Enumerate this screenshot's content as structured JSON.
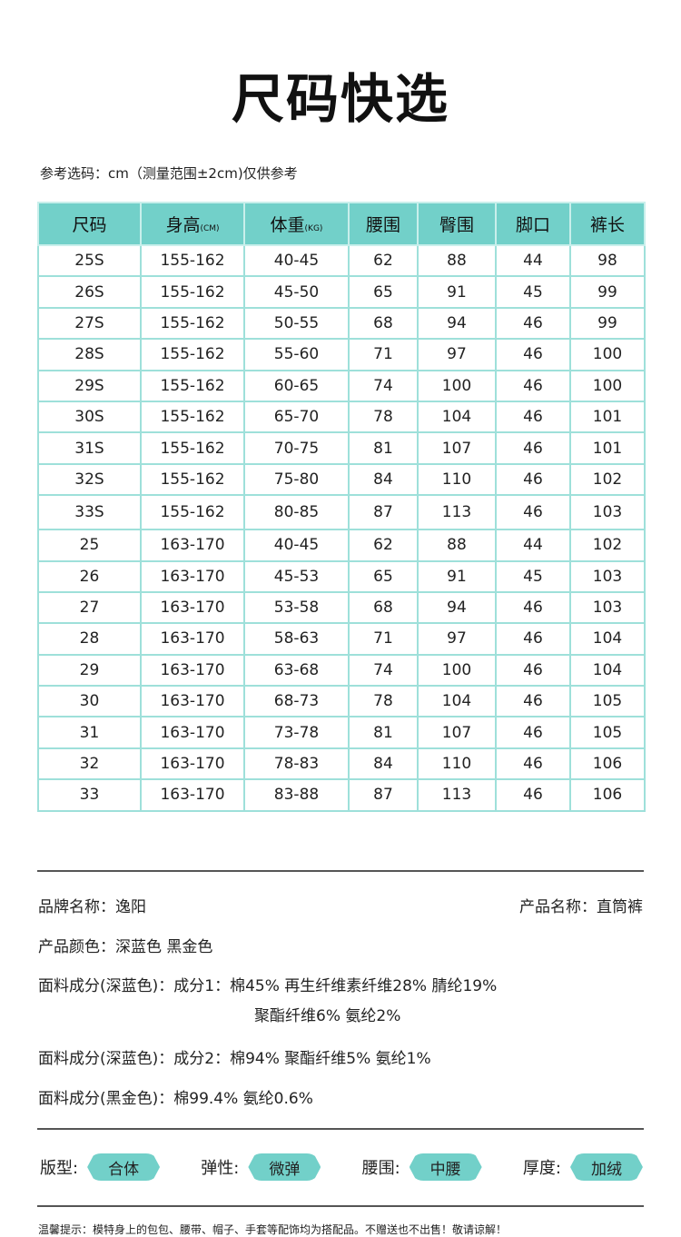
{
  "title": "尺码快选",
  "note": "参考选码：cm（测量范围±2cm)仅供参考",
  "table": {
    "headers": [
      {
        "main": "尺码",
        "unit": ""
      },
      {
        "main": "身高",
        "unit": "(CM)"
      },
      {
        "main": "体重",
        "unit": "(KG)"
      },
      {
        "main": "腰围",
        "unit": ""
      },
      {
        "main": "臀围",
        "unit": ""
      },
      {
        "main": "脚口",
        "unit": ""
      },
      {
        "main": "裤长",
        "unit": ""
      }
    ],
    "rows": [
      [
        "25S",
        "155-162",
        "40-45",
        "62",
        "88",
        "44",
        "98"
      ],
      [
        "26S",
        "155-162",
        "45-50",
        "65",
        "91",
        "45",
        "99"
      ],
      [
        "27S",
        "155-162",
        "50-55",
        "68",
        "94",
        "46",
        "99"
      ],
      [
        "28S",
        "155-162",
        "55-60",
        "71",
        "97",
        "46",
        "100"
      ],
      [
        "29S",
        "155-162",
        "60-65",
        "74",
        "100",
        "46",
        "100"
      ],
      [
        "30S",
        "155-162",
        "65-70",
        "78",
        "104",
        "46",
        "101"
      ],
      [
        "31S",
        "155-162",
        "70-75",
        "81",
        "107",
        "46",
        "101"
      ],
      [
        "32S",
        "155-162",
        "75-80",
        "84",
        "110",
        "46",
        "102"
      ],
      [
        "33S",
        "155-162",
        "80-85",
        "87",
        "113",
        "46",
        "103"
      ],
      [
        "25",
        "163-170",
        "40-45",
        "62",
        "88",
        "44",
        "102"
      ],
      [
        "26",
        "163-170",
        "45-53",
        "65",
        "91",
        "45",
        "103"
      ],
      [
        "27",
        "163-170",
        "53-58",
        "68",
        "94",
        "46",
        "103"
      ],
      [
        "28",
        "163-170",
        "58-63",
        "71",
        "97",
        "46",
        "104"
      ],
      [
        "29",
        "163-170",
        "63-68",
        "74",
        "100",
        "46",
        "104"
      ],
      [
        "30",
        "163-170",
        "68-73",
        "78",
        "104",
        "46",
        "105"
      ],
      [
        "31",
        "163-170",
        "73-78",
        "81",
        "107",
        "46",
        "105"
      ],
      [
        "32",
        "163-170",
        "78-83",
        "84",
        "110",
        "46",
        "106"
      ],
      [
        "33",
        "163-170",
        "83-88",
        "87",
        "113",
        "46",
        "106"
      ]
    ]
  },
  "info": {
    "brand": "品牌名称：逸阳",
    "product": "产品名称：直筒裤",
    "color": "产品颜色：深蓝色  黑金色",
    "fabric1_a": "面料成分(深蓝色)：成分1：棉45%  再生纤维素纤维28%  腈纶19%",
    "fabric1_b": "聚酯纤维6%  氨纶2%",
    "fabric2": "面料成分(深蓝色)：成分2：棉94% 聚酯纤维5% 氨纶1%",
    "fabric3": "面料成分(黑金色)：棉99.4% 氨纶0.6%"
  },
  "tags": [
    {
      "label": "版型:",
      "value": "合体"
    },
    {
      "label": "弹性:",
      "value": "微弹"
    },
    {
      "label": "腰围:",
      "value": "中腰"
    },
    {
      "label": "厚度:",
      "value": "加绒"
    }
  ],
  "tip": "温馨提示：模特身上的包包、腰带、帽子、手套等配饰均为搭配品。不赠送也不出售！敬请谅解！",
  "colors": {
    "accent": "#72d0c9",
    "border": "#9ee0da"
  }
}
